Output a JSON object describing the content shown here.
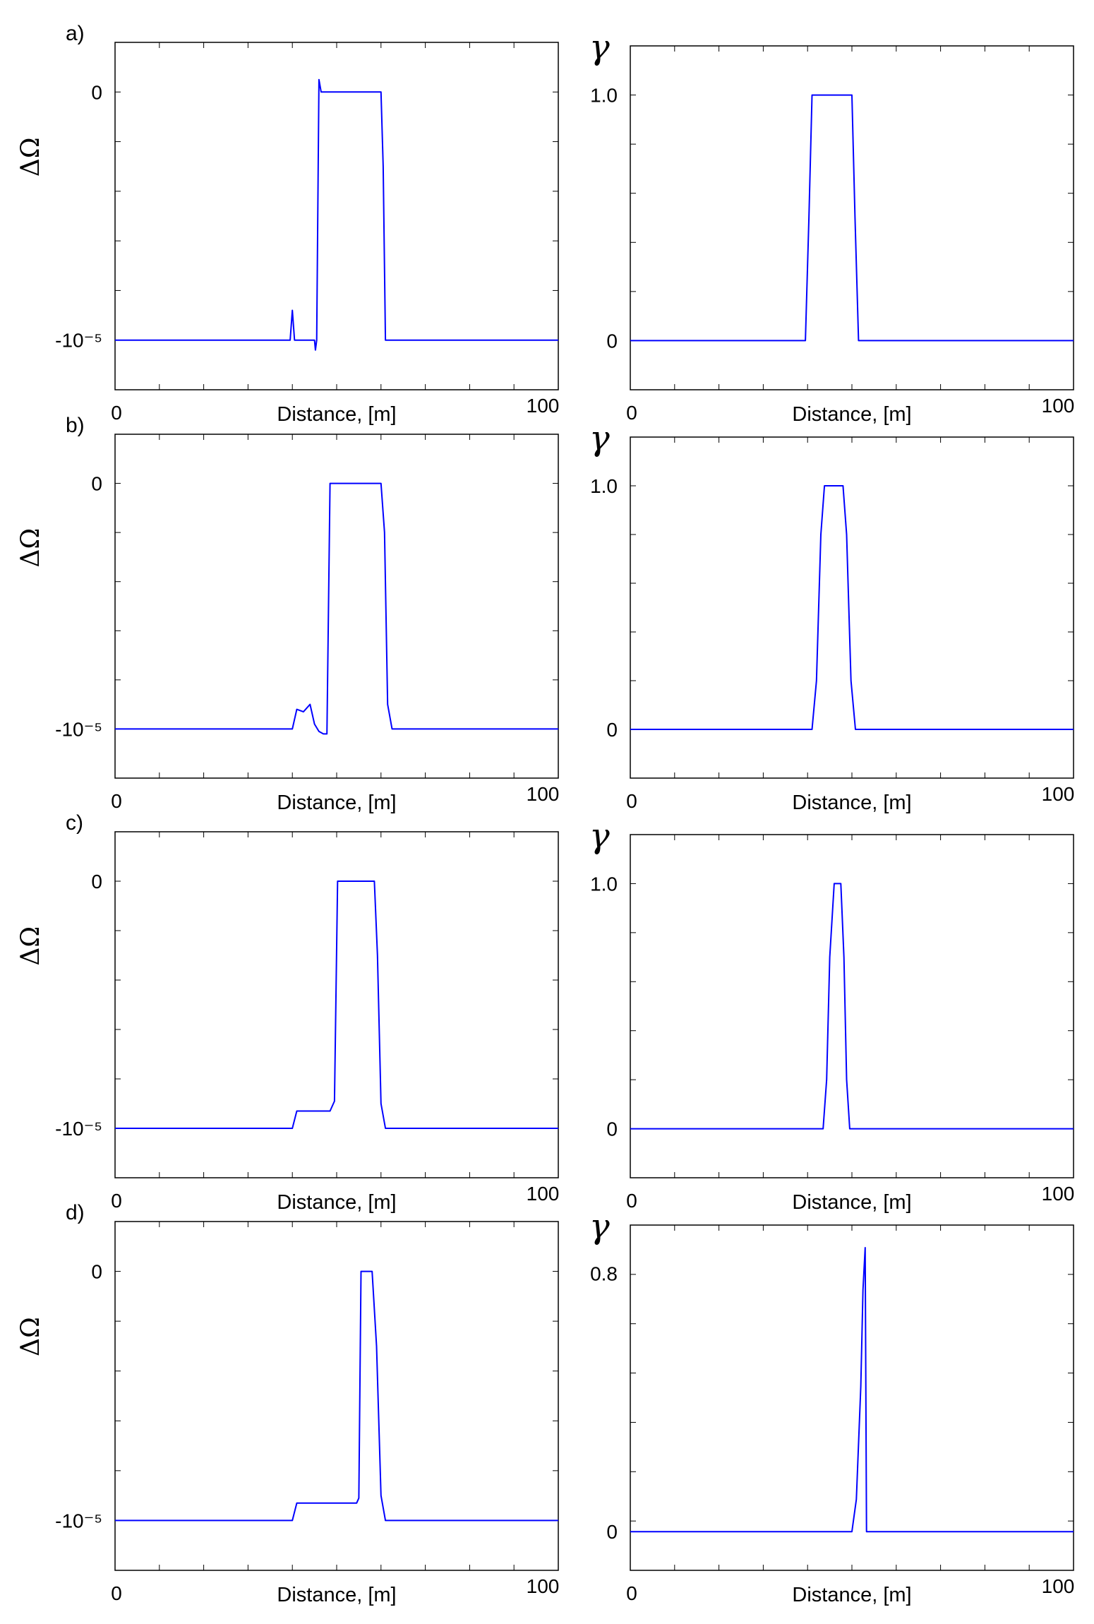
{
  "chart_data": [
    {
      "type": "line",
      "panel": "a)",
      "ylabel": "ΔΩ",
      "xlabel": "Distance, [m]",
      "xticks": [
        "0",
        "100"
      ],
      "yticks": [
        "-10⁻⁵",
        "0"
      ],
      "xlim": [
        0,
        100
      ],
      "ylim": [
        -1.2e-05,
        2e-06
      ],
      "color": "#0000ff",
      "series": [
        {
          "x": [
            0,
            39.5,
            40.0,
            40.5,
            41.0,
            44.5,
            45.0,
            45.2,
            45.5,
            46.0,
            46.5,
            59.0,
            60.0,
            60.5,
            61.0,
            100
          ],
          "y": [
            -1e-05,
            -1e-05,
            -8.8e-06,
            -1e-05,
            -1e-05,
            -1e-05,
            -1e-05,
            -1.04e-05,
            -1e-05,
            5e-07,
            0,
            0,
            0,
            -3e-06,
            -1e-05,
            -1e-05
          ]
        }
      ]
    },
    {
      "type": "line",
      "panel": "a)",
      "ylabel": "γ",
      "xlabel": "Distance, [m]",
      "xticks": [
        "0",
        "100"
      ],
      "yticks": [
        "0",
        "1.0"
      ],
      "xlim": [
        0,
        100
      ],
      "ylim": [
        -0.2,
        1.2
      ],
      "color": "#0000ff",
      "series": [
        {
          "x": [
            0,
            39.5,
            40.3,
            41.0,
            50.0,
            50.7,
            51.5,
            100
          ],
          "y": [
            0,
            0,
            0.5,
            1.0,
            1.0,
            0.5,
            0,
            0
          ]
        }
      ]
    },
    {
      "type": "line",
      "panel": "b)",
      "ylabel": "ΔΩ",
      "xlabel": "Distance, [m]",
      "xticks": [
        "0",
        "100"
      ],
      "yticks": [
        "-10⁻⁵",
        "0"
      ],
      "xlim": [
        0,
        100
      ],
      "ylim": [
        -1.2e-05,
        2e-06
      ],
      "color": "#0000ff",
      "series": [
        {
          "x": [
            0,
            40.0,
            41.0,
            42.5,
            44.0,
            45.0,
            46.0,
            47.0,
            47.8,
            48.5,
            49.2,
            60.0,
            60.8,
            61.5,
            62.5,
            100
          ],
          "y": [
            -1e-05,
            -1e-05,
            -9.2e-06,
            -9.3e-06,
            -9e-06,
            -9.8e-06,
            -1.01e-05,
            -1.02e-05,
            -1.02e-05,
            0,
            0,
            0,
            -2e-06,
            -9e-06,
            -1e-05,
            -1e-05
          ]
        }
      ]
    },
    {
      "type": "line",
      "panel": "b)",
      "ylabel": "γ",
      "xlabel": "Distance, [m]",
      "xticks": [
        "0",
        "100"
      ],
      "yticks": [
        "0",
        "1.0"
      ],
      "xlim": [
        0,
        100
      ],
      "ylim": [
        -0.2,
        1.2
      ],
      "color": "#0000ff",
      "series": [
        {
          "x": [
            0,
            41.0,
            42.0,
            43.0,
            43.8,
            48.0,
            48.8,
            49.8,
            50.8,
            100
          ],
          "y": [
            0,
            0,
            0.2,
            0.8,
            1.0,
            1.0,
            0.8,
            0.2,
            0,
            0
          ]
        }
      ]
    },
    {
      "type": "line",
      "panel": "c)",
      "ylabel": "ΔΩ",
      "xlabel": "Distance, [m]",
      "xticks": [
        "0",
        "100"
      ],
      "yticks": [
        "-10⁻⁵",
        "0"
      ],
      "xlim": [
        0,
        100
      ],
      "ylim": [
        -1.2e-05,
        2e-06
      ],
      "color": "#0000ff",
      "series": [
        {
          "x": [
            0,
            40.0,
            41.0,
            43.0,
            46.0,
            48.5,
            49.5,
            50.2,
            50.8,
            58.5,
            59.2,
            60.0,
            61.0,
            100
          ],
          "y": [
            -1e-05,
            -1e-05,
            -9.3e-06,
            -9.3e-06,
            -9.3e-06,
            -9.3e-06,
            -8.9e-06,
            0,
            0,
            0,
            -3e-06,
            -9e-06,
            -1e-05,
            -1e-05
          ]
        }
      ]
    },
    {
      "type": "line",
      "panel": "c)",
      "ylabel": "γ",
      "xlabel": "Distance, [m]",
      "xticks": [
        "0",
        "100"
      ],
      "yticks": [
        "0",
        "1.0"
      ],
      "xlim": [
        0,
        100
      ],
      "ylim": [
        -0.2,
        1.2
      ],
      "color": "#0000ff",
      "series": [
        {
          "x": [
            0,
            43.5,
            44.3,
            45.0,
            46.0,
            47.5,
            48.2,
            48.8,
            49.5,
            100
          ],
          "y": [
            0,
            0,
            0.2,
            0.7,
            1.0,
            1.0,
            0.7,
            0.2,
            0,
            0
          ]
        }
      ]
    },
    {
      "type": "line",
      "panel": "d)",
      "ylabel": "ΔΩ",
      "xlabel": "Distance, [m]",
      "xticks": [
        "0",
        "100"
      ],
      "yticks": [
        "-10⁻⁵",
        "0"
      ],
      "xlim": [
        0,
        100
      ],
      "ylim": [
        -1.2e-05,
        2e-06
      ],
      "color": "#0000ff",
      "series": [
        {
          "x": [
            0,
            40.0,
            41.0,
            43.0,
            50.0,
            54.5,
            55.0,
            55.5,
            58.0,
            59.0,
            60.0,
            61.0,
            100
          ],
          "y": [
            -1e-05,
            -1e-05,
            -9.3e-06,
            -9.3e-06,
            -9.3e-06,
            -9.3e-06,
            -9.1e-06,
            0,
            0,
            -3e-06,
            -9e-06,
            -1e-05,
            -1e-05
          ]
        }
      ]
    },
    {
      "type": "line",
      "panel": "d)",
      "ylabel": "γ",
      "xlabel": "Distance, [m]",
      "xticks": [
        "0",
        "100"
      ],
      "yticks": [
        "0",
        "0.8"
      ],
      "xlim": [
        0,
        100
      ],
      "ylim": [
        -0.12,
        0.95
      ],
      "color": "#0000ff",
      "series": [
        {
          "x": [
            0,
            50.0,
            51.0,
            52.0,
            52.5,
            53.0,
            53.3,
            54.0,
            100
          ],
          "y": [
            0,
            0,
            0.1,
            0.45,
            0.75,
            0.88,
            0,
            0,
            0
          ]
        }
      ]
    }
  ]
}
